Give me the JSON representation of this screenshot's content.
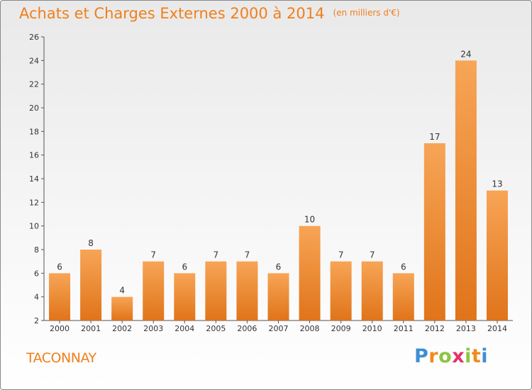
{
  "title": "Achats et Charges Externes 2000 à 2014",
  "unit": "(en milliers d'€)",
  "commune": "TACONNAY",
  "logo": {
    "letters": [
      "P",
      "r",
      "o",
      "x",
      "i",
      "t",
      "i"
    ],
    "colors": [
      "#3e8fd3",
      "#f28a1e",
      "#8cc63f",
      "#e2336b",
      "#8cc63f",
      "#f28a1e",
      "#3e8fd3"
    ]
  },
  "chart_data": {
    "type": "bar",
    "categories": [
      "2000",
      "2001",
      "2002",
      "2003",
      "2004",
      "2005",
      "2006",
      "2007",
      "2008",
      "2009",
      "2010",
      "2011",
      "2012",
      "2013",
      "2014"
    ],
    "values": [
      6,
      8,
      4,
      7,
      6,
      7,
      7,
      6,
      10,
      7,
      7,
      6,
      17,
      24,
      13
    ],
    "ylim": [
      2,
      26
    ],
    "yticks": [
      2,
      4,
      6,
      8,
      10,
      12,
      14,
      16,
      18,
      20,
      22,
      24,
      26
    ],
    "grid": false,
    "bar_color": "#f28a1e"
  }
}
